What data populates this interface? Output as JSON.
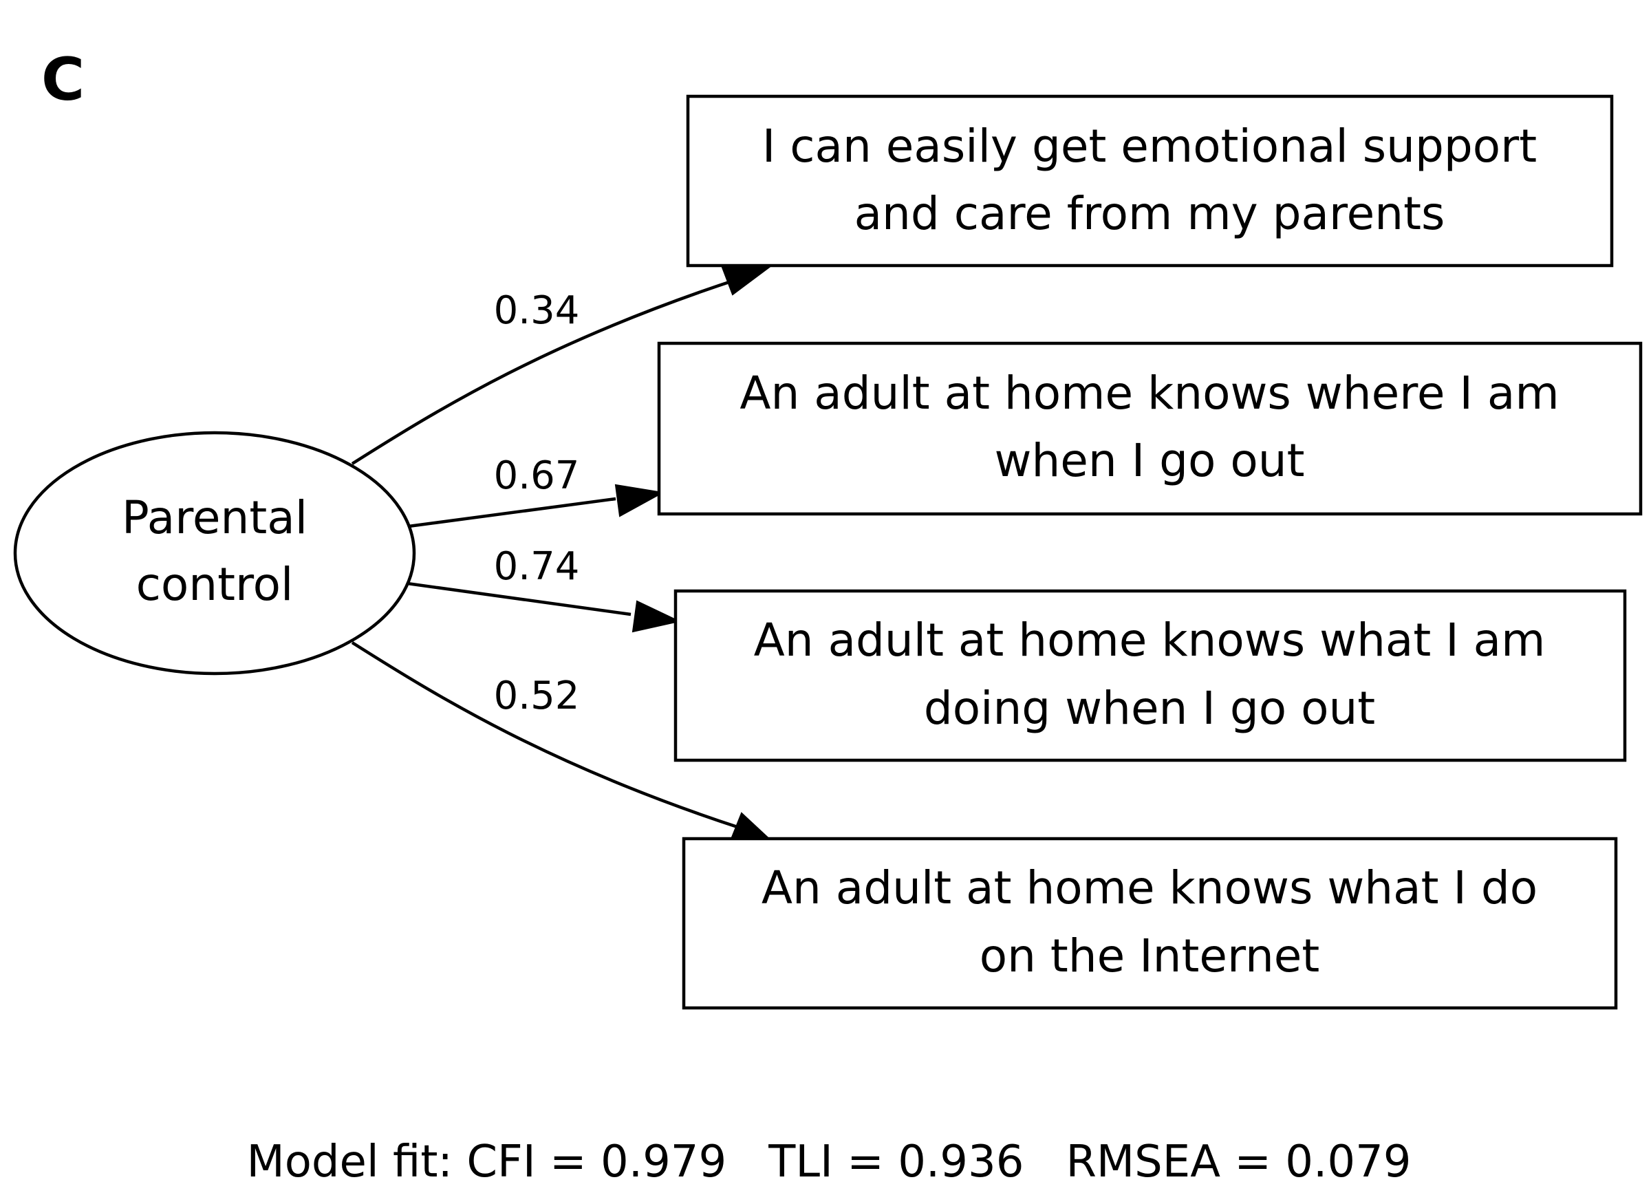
{
  "panel_label": "C",
  "latent": {
    "line1": "Parental",
    "line2": "control"
  },
  "indicators": [
    {
      "line1": "I can easily get emotional support",
      "line2": "and care from my parents",
      "loading": "0.34"
    },
    {
      "line1": "An adult at home knows where I am",
      "line2": "when I go out",
      "loading": "0.67"
    },
    {
      "line1": "An adult at home knows what I am",
      "line2": "doing when I go out",
      "loading": "0.74"
    },
    {
      "line1": "An adult at home knows what I do",
      "line2": "on the Internet",
      "loading": "0.52"
    }
  ],
  "model_fit": "Model fit: CFI = 0.979   TLI = 0.936   RMSEA = 0.079"
}
